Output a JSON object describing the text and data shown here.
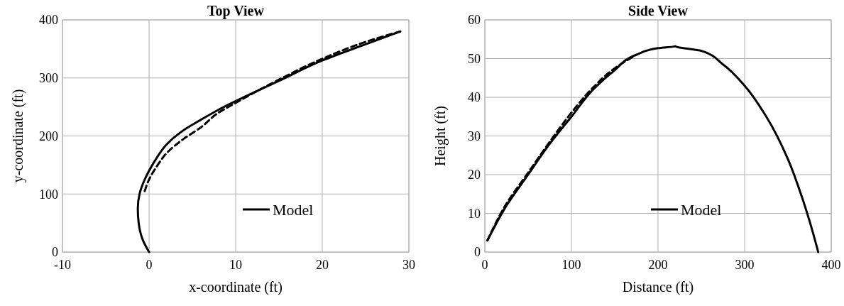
{
  "chart_data": [
    {
      "type": "line",
      "title": "Top View",
      "xlabel": "x-coordinate (ft)",
      "ylabel": "y-coordinate (ft)",
      "xlim": [
        -10,
        30
      ],
      "xticks": [
        -10,
        0,
        10,
        20,
        30
      ],
      "ylim": [
        0,
        400
      ],
      "yticks": [
        0,
        100,
        200,
        300,
        400
      ],
      "grid": true,
      "legend": "bottom right",
      "marker": "none",
      "series": [
        {
          "name": "Model",
          "color": "#000000",
          "line_style": "solid",
          "x": [
            0,
            -0.7,
            -1.2,
            -1.3,
            -1.1,
            -0.5,
            0,
            1,
            2,
            4,
            6,
            8,
            10,
            15,
            20,
            25,
            29
          ],
          "values": [
            0,
            20,
            50,
            75,
            100,
            125,
            140,
            165,
            185,
            210,
            228,
            245,
            260,
            295,
            330,
            358,
            380
          ]
        },
        {
          "color": "#000000",
          "line_style": "dashed",
          "x": [
            -0.5,
            0,
            1,
            2,
            4,
            6,
            8,
            10,
            15,
            20,
            25,
            29
          ],
          "values": [
            105,
            125,
            150,
            170,
            195,
            215,
            240,
            257,
            297,
            333,
            362,
            380
          ]
        }
      ]
    },
    {
      "type": "line",
      "title": "Side View",
      "xlabel": "Distance (ft)",
      "ylabel": "Height (ft)",
      "xlim": [
        0,
        400
      ],
      "xticks": [
        0,
        100,
        200,
        300,
        400
      ],
      "ylim": [
        0,
        60
      ],
      "yticks": [
        0,
        10,
        20,
        30,
        40,
        50,
        60
      ],
      "grid": true,
      "legend": "bottom",
      "marker": "none",
      "series": [
        {
          "name": "Model",
          "color": "#000000",
          "line_style": "solid",
          "x": [
            3,
            25,
            50,
            75,
            100,
            125,
            150,
            175,
            200,
            220,
            250,
            275,
            300,
            325,
            350,
            365,
            375,
            385
          ],
          "values": [
            3,
            12,
            20,
            28,
            35,
            42,
            47,
            51,
            52.7,
            53.2,
            52,
            48.5,
            43,
            35,
            24,
            15,
            8,
            0
          ]
        },
        {
          "color": "#000000",
          "line_style": "dashed",
          "x": [
            3,
            25,
            50,
            75,
            100,
            125,
            150,
            175
          ],
          "values": [
            3,
            12.5,
            20.5,
            28.5,
            36,
            42.5,
            47.5,
            51
          ]
        }
      ]
    }
  ]
}
